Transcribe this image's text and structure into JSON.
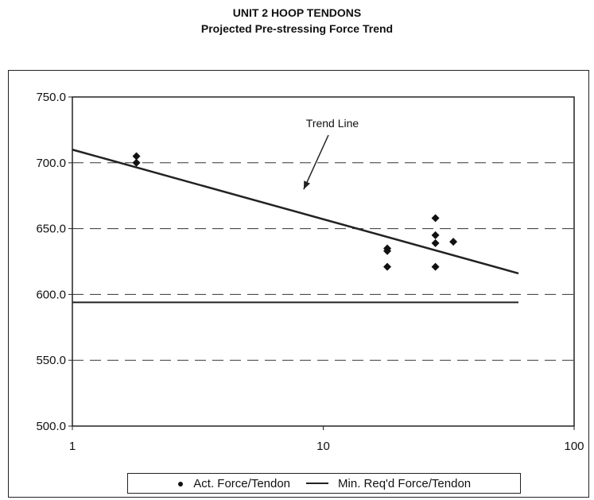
{
  "chart_data": {
    "type": "scatter",
    "title": "UNIT 2 HOOP TENDONS",
    "subtitle": "Projected Pre-stressing Force Trend",
    "xscale": "log",
    "xlim": [
      1,
      100
    ],
    "ylim": [
      500.0,
      750.0
    ],
    "xticks": [
      "1",
      "10",
      "100"
    ],
    "yticks": [
      "500.0",
      "550.0",
      "600.0",
      "650.0",
      "700.0",
      "750.0"
    ],
    "grid": "dashed horizontal",
    "series": [
      {
        "name": "Act. Force/Tendon",
        "marker": "diamond",
        "points": [
          {
            "x": 1.8,
            "y": 705
          },
          {
            "x": 1.8,
            "y": 700
          },
          {
            "x": 18,
            "y": 635
          },
          {
            "x": 18,
            "y": 633
          },
          {
            "x": 18,
            "y": 621
          },
          {
            "x": 28,
            "y": 658
          },
          {
            "x": 28,
            "y": 645
          },
          {
            "x": 28,
            "y": 639
          },
          {
            "x": 28,
            "y": 621
          },
          {
            "x": 33,
            "y": 640
          }
        ]
      },
      {
        "name": "Min. Req'd Force/Tendon",
        "type": "line",
        "points": [
          {
            "x": 1,
            "y": 594
          },
          {
            "x": 60,
            "y": 594
          }
        ]
      }
    ],
    "trend_line": {
      "points": [
        {
          "x": 1,
          "y": 710
        },
        {
          "x": 60,
          "y": 616
        }
      ]
    },
    "annotations": [
      {
        "text": "Trend Line",
        "x": 8,
        "y": 675
      }
    ],
    "legend_position": "bottom"
  },
  "legend": {
    "marker_glyph": "●",
    "item1": "Act. Force/Tendon",
    "item2": "Min. Req'd Force/Tendon"
  }
}
